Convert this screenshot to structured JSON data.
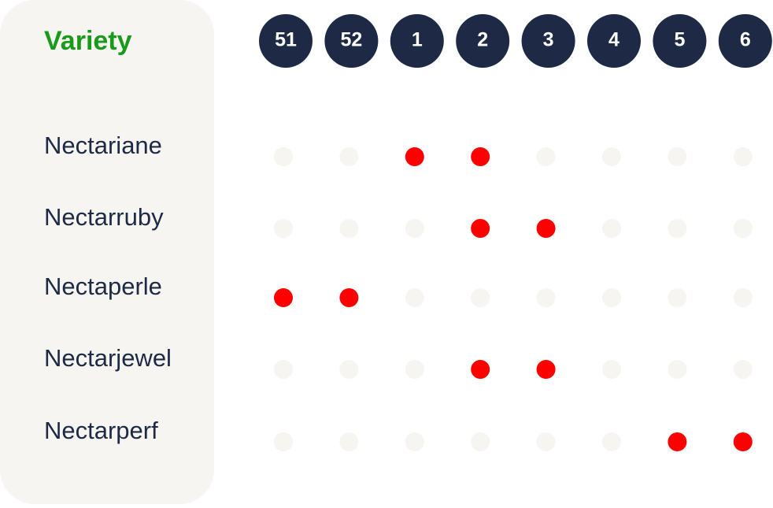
{
  "header": {
    "title": "Variety",
    "weeks": [
      "51",
      "52",
      "1",
      "2",
      "3",
      "4",
      "5",
      "6"
    ]
  },
  "rows": [
    {
      "name": "Nectariane",
      "available": [
        false,
        false,
        true,
        true,
        false,
        false,
        false,
        false
      ]
    },
    {
      "name": "Nectarruby",
      "available": [
        false,
        false,
        false,
        true,
        true,
        false,
        false,
        false
      ]
    },
    {
      "name": "Nectaperle",
      "available": [
        true,
        true,
        false,
        false,
        false,
        false,
        false,
        false
      ]
    },
    {
      "name": "Nectarjewel",
      "available": [
        false,
        false,
        false,
        true,
        true,
        false,
        false,
        false
      ]
    },
    {
      "name": "Nectarperf",
      "available": [
        false,
        false,
        false,
        false,
        false,
        false,
        true,
        true
      ]
    }
  ]
}
